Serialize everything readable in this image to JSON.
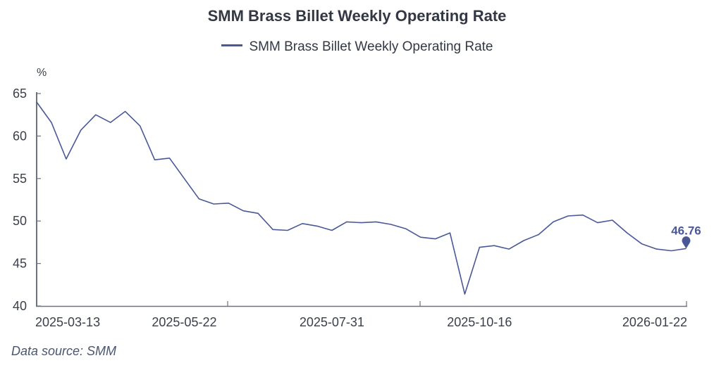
{
  "chart_data": {
    "type": "line",
    "title": "SMM Brass Billet Weekly Operating Rate",
    "legend": [
      "SMM Brass Billet Weekly Operating Rate"
    ],
    "legend_position": "top-center",
    "ylabel": "%",
    "xlabel": "",
    "ylim": [
      40,
      65
    ],
    "yticks": [
      "40",
      "45",
      "50",
      "55",
      "60",
      "65"
    ],
    "ytick_values": [
      40,
      45,
      50,
      55,
      60,
      65
    ],
    "xtick_labels": [
      "2025-03-13",
      "2025-05-22",
      "2025-07-31",
      "2025-10-16",
      "2026-01-22"
    ],
    "grid": false,
    "x": [
      "2025-03-13",
      "2025-03-20",
      "2025-03-27",
      "2025-04-03",
      "2025-04-10",
      "2025-04-17",
      "2025-04-24",
      "2025-05-01",
      "2025-05-08",
      "2025-05-15",
      "2025-05-22",
      "2025-05-29",
      "2025-06-05",
      "2025-06-12",
      "2025-06-19",
      "2025-06-26",
      "2025-07-03",
      "2025-07-10",
      "2025-07-17",
      "2025-07-24",
      "2025-07-31",
      "2025-08-07",
      "2025-08-14",
      "2025-08-21",
      "2025-08-28",
      "2025-09-04",
      "2025-09-11",
      "2025-09-18",
      "2025-09-25",
      "2025-10-09",
      "2025-10-16",
      "2025-10-23",
      "2025-10-30",
      "2025-11-06",
      "2025-11-13",
      "2025-11-20",
      "2025-11-27",
      "2025-12-04",
      "2025-12-11",
      "2025-12-18",
      "2025-12-25",
      "2026-01-01",
      "2026-01-08",
      "2026-01-15",
      "2026-01-22"
    ],
    "series": [
      {
        "name": "SMM Brass Billet Weekly Operating Rate",
        "color": "#4a5898",
        "values": [
          64.0,
          61.6,
          57.3,
          60.7,
          62.5,
          61.6,
          62.9,
          61.2,
          57.2,
          57.4,
          55.0,
          52.6,
          52.0,
          52.1,
          51.2,
          50.9,
          49.0,
          48.9,
          49.7,
          49.4,
          48.9,
          49.9,
          49.8,
          49.9,
          49.6,
          49.1,
          48.1,
          47.9,
          48.6,
          41.4,
          46.9,
          47.1,
          46.7,
          47.7,
          48.4,
          49.9,
          50.6,
          50.7,
          49.8,
          50.1,
          48.6,
          47.3,
          46.7,
          46.5,
          46.76
        ]
      }
    ],
    "annotations": [
      {
        "type": "last-value-marker",
        "label": "46.76",
        "x": "2026-01-22",
        "value": 46.76
      }
    ],
    "source_note": "Data source:  SMM"
  }
}
